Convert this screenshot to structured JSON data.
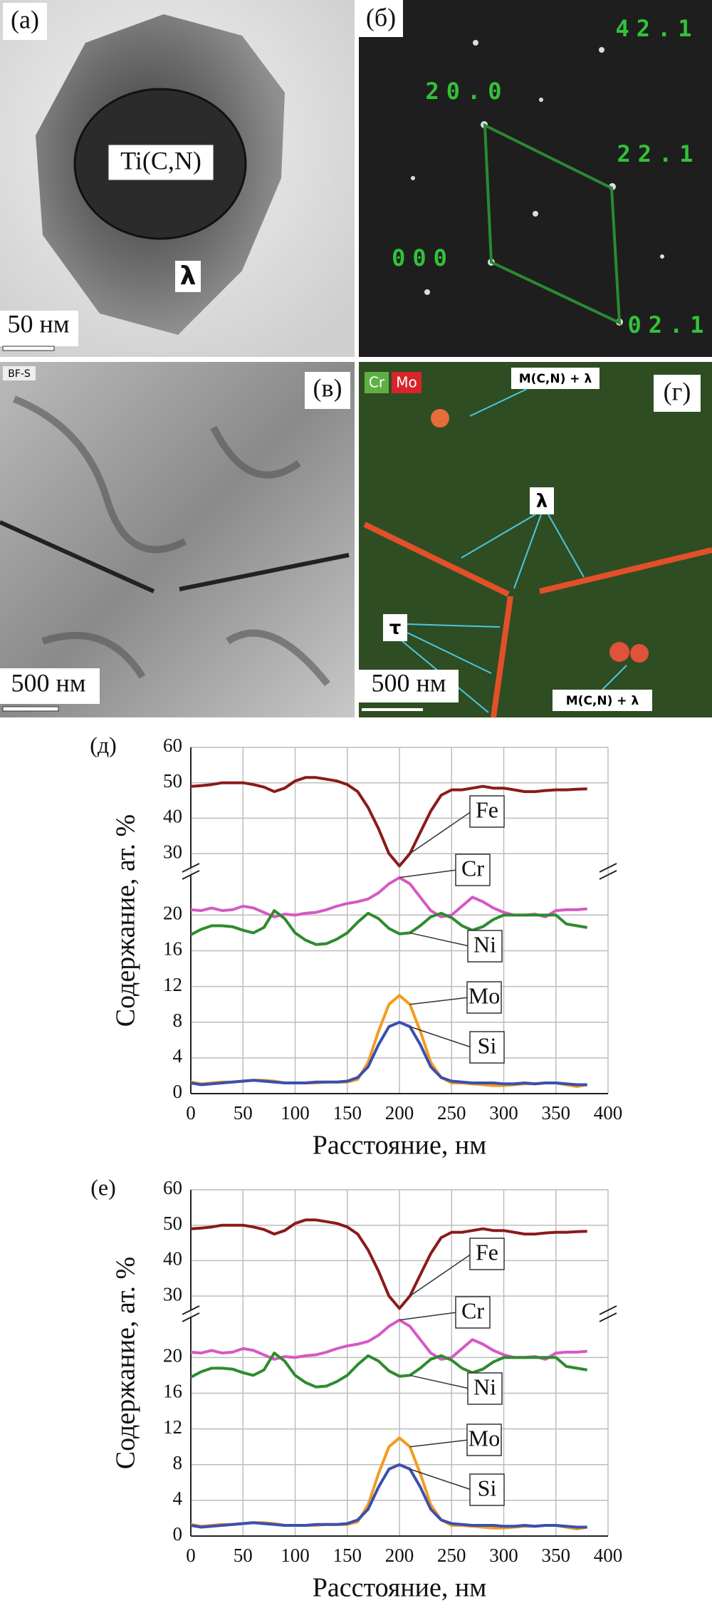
{
  "micrographs": {
    "a": {
      "label": "(а)",
      "phase_core": "Ti(C,N)",
      "phase_shell": "λ",
      "scale": "50 нм"
    },
    "b": {
      "label": "(б)",
      "spots": [
        "42.1",
        "20.0",
        "22.1",
        "000",
        "02.1"
      ]
    },
    "c": {
      "label": "(в)",
      "mode": "BF-S",
      "scale": "500 нм"
    },
    "d": {
      "label": "(г)",
      "legend": [
        "Cr",
        "Mo"
      ],
      "phase_top": "M(C,N) + λ",
      "lambda": "λ",
      "tau": "τ",
      "scale": "500 нм",
      "phase_bottom": "M(C,N) + λ"
    }
  },
  "chart_data": [
    {
      "type": "line",
      "panel_label": "(д)",
      "xlabel": "Расстояние, нм",
      "ylabel": "Содержание, ат. %",
      "grid": true,
      "x": [
        0,
        10,
        20,
        30,
        40,
        50,
        60,
        70,
        80,
        90,
        100,
        110,
        120,
        130,
        140,
        150,
        160,
        170,
        180,
        190,
        200,
        210,
        220,
        230,
        240,
        250,
        260,
        270,
        280,
        290,
        300,
        310,
        320,
        330,
        340,
        350,
        360,
        370,
        380
      ],
      "xlim": [
        0,
        400
      ],
      "xticks": [
        0,
        50,
        100,
        150,
        200,
        250,
        300,
        350,
        400
      ],
      "segments": [
        {
          "ylim": [
            0,
            24.5
          ],
          "yticks": [
            0,
            4,
            8,
            12,
            16,
            20
          ]
        },
        {
          "ylim": [
            26,
            60
          ],
          "yticks": [
            30,
            40,
            50,
            60
          ]
        }
      ],
      "series": [
        {
          "name": "Fe",
          "color": "#8b1a1a",
          "segment": 1,
          "values": [
            49,
            49.2,
            49.5,
            50,
            50,
            50,
            49.5,
            48.8,
            47.5,
            48.5,
            50.5,
            51.5,
            51.5,
            51,
            50.5,
            49.5,
            47.5,
            43,
            37,
            30,
            26.5,
            30,
            36,
            42,
            46.5,
            48,
            48,
            48.5,
            49,
            48.5,
            48.5,
            48,
            47.5,
            47.5,
            47.8,
            48,
            48,
            48.2,
            48.3
          ]
        },
        {
          "name": "Cr",
          "color": "#d659c4",
          "segment": 0,
          "values": [
            20.6,
            20.5,
            20.8,
            20.5,
            20.6,
            21,
            20.8,
            20.3,
            19.8,
            20.1,
            20,
            20.2,
            20.3,
            20.6,
            21,
            21.3,
            21.5,
            21.8,
            22.5,
            23.5,
            24.2,
            23.5,
            22,
            20.5,
            19.8,
            20,
            21,
            22,
            21.5,
            20.8,
            20.3,
            20,
            20,
            20.1,
            19.8,
            20.5,
            20.6,
            20.6,
            20.7
          ]
        },
        {
          "name": "Ni",
          "color": "#2e8b2e",
          "segment": 0,
          "values": [
            17.8,
            18.4,
            18.8,
            18.8,
            18.7,
            18.3,
            18,
            18.6,
            20.5,
            19.6,
            18,
            17.2,
            16.7,
            16.8,
            17.3,
            18,
            19.2,
            20.2,
            19.6,
            18.5,
            17.9,
            18,
            18.8,
            19.8,
            20.2,
            19.7,
            18.8,
            18.3,
            18.7,
            19.5,
            20,
            20,
            20,
            20,
            20,
            20,
            19,
            18.8,
            18.6
          ]
        },
        {
          "name": "Mo",
          "color": "#f39c1f",
          "segment": 0,
          "values": [
            1.3,
            1.1,
            1.2,
            1.3,
            1.3,
            1.4,
            1.5,
            1.5,
            1.4,
            1.2,
            1.2,
            1.2,
            1.2,
            1.3,
            1.3,
            1.3,
            1.6,
            3.5,
            7,
            10,
            11,
            10,
            7,
            3.5,
            1.8,
            1.2,
            1.2,
            1.1,
            1,
            0.9,
            0.9,
            1,
            1.1,
            1.1,
            1.2,
            1.2,
            1,
            0.8,
            1
          ]
        },
        {
          "name": "Si",
          "color": "#3a4fb0",
          "segment": 0,
          "values": [
            1.2,
            1,
            1.1,
            1.2,
            1.3,
            1.4,
            1.5,
            1.4,
            1.3,
            1.2,
            1.2,
            1.2,
            1.3,
            1.3,
            1.3,
            1.4,
            1.8,
            3,
            5.5,
            7.5,
            8,
            7.5,
            5.5,
            3,
            1.8,
            1.4,
            1.3,
            1.2,
            1.2,
            1.2,
            1.1,
            1.1,
            1.2,
            1.1,
            1.2,
            1.2,
            1.1,
            1,
            1
          ]
        }
      ]
    },
    {
      "type": "line",
      "panel_label": "(е)",
      "xlabel": "Расстояние, нм",
      "ylabel": "Содержание, ат. %",
      "grid": true,
      "x": [
        0,
        10,
        20,
        30,
        40,
        50,
        60,
        70,
        80,
        90,
        100,
        110,
        120,
        130,
        140,
        150,
        160,
        170,
        180,
        190,
        200,
        210,
        220,
        230,
        240,
        250,
        260,
        270,
        280,
        290,
        300,
        310,
        320,
        330,
        340,
        350,
        360,
        370,
        380
      ],
      "xlim": [
        0,
        400
      ],
      "xticks": [
        0,
        50,
        100,
        150,
        200,
        250,
        300,
        350,
        400
      ],
      "segments": [
        {
          "ylim": [
            0,
            24.5
          ],
          "yticks": [
            0,
            4,
            8,
            12,
            16,
            20
          ]
        },
        {
          "ylim": [
            26,
            60
          ],
          "yticks": [
            30,
            40,
            50,
            60
          ]
        }
      ],
      "series": [
        {
          "name": "Fe",
          "color": "#8b1a1a",
          "segment": 1,
          "values": [
            49,
            49.2,
            49.5,
            50,
            50,
            50,
            49.5,
            48.8,
            47.5,
            48.5,
            50.5,
            51.5,
            51.5,
            51,
            50.5,
            49.5,
            47.5,
            43,
            37,
            30,
            26.5,
            30,
            36,
            42,
            46.5,
            48,
            48,
            48.5,
            49,
            48.5,
            48.5,
            48,
            47.5,
            47.5,
            47.8,
            48,
            48,
            48.2,
            48.3
          ]
        },
        {
          "name": "Cr",
          "color": "#d659c4",
          "segment": 0,
          "values": [
            20.6,
            20.5,
            20.8,
            20.5,
            20.6,
            21,
            20.8,
            20.3,
            19.8,
            20.1,
            20,
            20.2,
            20.3,
            20.6,
            21,
            21.3,
            21.5,
            21.8,
            22.5,
            23.5,
            24.2,
            23.5,
            22,
            20.5,
            19.8,
            20,
            21,
            22,
            21.5,
            20.8,
            20.3,
            20,
            20,
            20.1,
            19.8,
            20.5,
            20.6,
            20.6,
            20.7
          ]
        },
        {
          "name": "Ni",
          "color": "#2e8b2e",
          "segment": 0,
          "values": [
            17.8,
            18.4,
            18.8,
            18.8,
            18.7,
            18.3,
            18,
            18.6,
            20.5,
            19.6,
            18,
            17.2,
            16.7,
            16.8,
            17.3,
            18,
            19.2,
            20.2,
            19.6,
            18.5,
            17.9,
            18,
            18.8,
            19.8,
            20.2,
            19.7,
            18.8,
            18.3,
            18.7,
            19.5,
            20,
            20,
            20,
            20,
            20,
            20,
            19,
            18.8,
            18.6
          ]
        },
        {
          "name": "Mo",
          "color": "#f39c1f",
          "segment": 0,
          "values": [
            1.3,
            1.1,
            1.2,
            1.3,
            1.3,
            1.4,
            1.5,
            1.5,
            1.4,
            1.2,
            1.2,
            1.2,
            1.2,
            1.3,
            1.3,
            1.3,
            1.6,
            3.5,
            7,
            10,
            11,
            10,
            7,
            3.5,
            1.8,
            1.2,
            1.2,
            1.1,
            1,
            0.9,
            0.9,
            1,
            1.1,
            1.1,
            1.2,
            1.2,
            1,
            0.8,
            1
          ]
        },
        {
          "name": "Si",
          "color": "#3a4fb0",
          "segment": 0,
          "values": [
            1.2,
            1,
            1.1,
            1.2,
            1.3,
            1.4,
            1.5,
            1.4,
            1.3,
            1.2,
            1.2,
            1.2,
            1.3,
            1.3,
            1.3,
            1.4,
            1.8,
            3,
            5.5,
            7.5,
            8,
            7.5,
            5.5,
            3,
            1.8,
            1.4,
            1.3,
            1.2,
            1.2,
            1.2,
            1.1,
            1.1,
            1.2,
            1.1,
            1.2,
            1.2,
            1.1,
            1,
            1
          ]
        }
      ]
    }
  ]
}
